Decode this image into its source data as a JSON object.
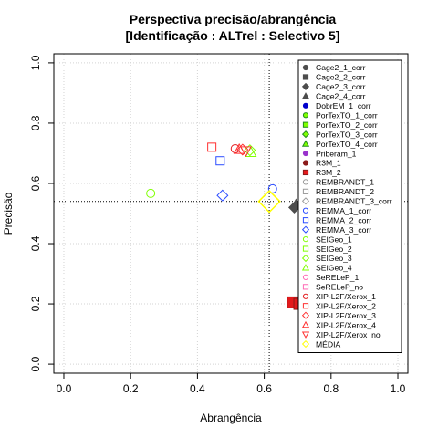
{
  "chart_data": {
    "type": "scatter",
    "title": "Perspectiva precisão/abrangência",
    "subtitle": "[Identificação : ALTrel : Selectivo 5]",
    "xlabel": "Abrangência",
    "ylabel": "Precisão",
    "xlim": [
      -0.03,
      1.03
    ],
    "ylim": [
      -0.03,
      1.03
    ],
    "xticks": [
      "0.0",
      "0.2",
      "0.4",
      "0.6",
      "0.8",
      "1.0"
    ],
    "yticks": [
      "0.0",
      "0.2",
      "0.4",
      "0.6",
      "0.8",
      "1.0"
    ],
    "grid": true,
    "legend_position": "right",
    "reference_lines": {
      "x": 0.615,
      "y": 0.54
    },
    "series": [
      {
        "name": "Cage2_1_corr",
        "shape": "circle",
        "color": "#4d4d4d",
        "fill": "#4d4d4d",
        "points": []
      },
      {
        "name": "Cage2_2_corr",
        "shape": "square",
        "color": "#4d4d4d",
        "fill": "#4d4d4d",
        "points": []
      },
      {
        "name": "Cage2_3_corr",
        "shape": "diamond",
        "color": "#4d4d4d",
        "fill": "#4d4d4d",
        "points": [
          [
            0.69,
            0.52
          ]
        ]
      },
      {
        "name": "Cage2_4_corr",
        "shape": "triangle",
        "color": "#4d4d4d",
        "fill": "#4d4d4d",
        "points": [
          [
            0.695,
            0.53
          ]
        ]
      },
      {
        "name": "DobrEM_1_corr",
        "shape": "circle",
        "color": "#0000cc",
        "fill": "#0000cc",
        "points": []
      },
      {
        "name": "PorTexTO_1_corr",
        "shape": "circle",
        "color": "#228b22",
        "fill": "#7fff00",
        "points": []
      },
      {
        "name": "PorTexTO_2_corr",
        "shape": "square",
        "color": "#228b22",
        "fill": "#7fff00",
        "points": []
      },
      {
        "name": "PorTexTO_3_corr",
        "shape": "diamond",
        "color": "#228b22",
        "fill": "#7fff00",
        "points": []
      },
      {
        "name": "PorTexTO_4_corr",
        "shape": "triangle",
        "color": "#228b22",
        "fill": "#7fff00",
        "points": []
      },
      {
        "name": "Priberam_1",
        "shape": "circle",
        "color": "#9932cc",
        "fill": "#9932cc",
        "points": []
      },
      {
        "name": "R3M_1",
        "shape": "circle",
        "color": "#8b1a1a",
        "fill": "#8b1a1a",
        "points": []
      },
      {
        "name": "R3M_2",
        "shape": "square",
        "color": "#8b1a1a",
        "fill": "#e31a1c",
        "points": [
          [
            0.685,
            0.205
          ],
          [
            0.705,
            0.2
          ]
        ]
      },
      {
        "name": "REMBRANDT_1",
        "shape": "circle",
        "color": "#999999",
        "fill": "none",
        "points": []
      },
      {
        "name": "REMBRANDT_2",
        "shape": "square",
        "color": "#999999",
        "fill": "none",
        "points": []
      },
      {
        "name": "REMBRANDT_3_corr",
        "shape": "diamond",
        "color": "#999999",
        "fill": "none",
        "points": []
      },
      {
        "name": "REMMA_1_corr",
        "shape": "circle",
        "color": "#2b4cff",
        "fill": "none",
        "points": [
          [
            0.625,
            0.582
          ]
        ]
      },
      {
        "name": "REMMA_2_corr",
        "shape": "square",
        "color": "#2b4cff",
        "fill": "none",
        "points": [
          [
            0.468,
            0.675
          ]
        ]
      },
      {
        "name": "REMMA_3_corr",
        "shape": "diamond",
        "color": "#2b4cff",
        "fill": "none",
        "points": [
          [
            0.475,
            0.56
          ]
        ]
      },
      {
        "name": "SEIGeo_1",
        "shape": "circle",
        "color": "#7fff00",
        "fill": "none",
        "points": [
          [
            0.26,
            0.567
          ]
        ]
      },
      {
        "name": "SEIGeo_2",
        "shape": "square",
        "color": "#7fff00",
        "fill": "none",
        "points": []
      },
      {
        "name": "SEIGeo_3",
        "shape": "diamond",
        "color": "#7fff00",
        "fill": "none",
        "points": [
          [
            0.557,
            0.71
          ]
        ]
      },
      {
        "name": "SEIGeo_4",
        "shape": "triangle",
        "color": "#7fff00",
        "fill": "none",
        "points": [
          [
            0.56,
            0.703
          ]
        ]
      },
      {
        "name": "SeRELeP_1",
        "shape": "circle",
        "color": "#ff69b4",
        "fill": "none",
        "points": []
      },
      {
        "name": "SeRELeP_no",
        "shape": "square",
        "color": "#ff69b4",
        "fill": "none",
        "points": []
      },
      {
        "name": "XIP-L2F/Xerox_1",
        "shape": "circle",
        "color": "#e31a1c",
        "fill": "none",
        "points": [
          [
            0.513,
            0.715
          ]
        ]
      },
      {
        "name": "XIP-L2F/Xerox_2",
        "shape": "square",
        "color": "#ff3030",
        "fill": "none",
        "points": [
          [
            0.443,
            0.72
          ]
        ]
      },
      {
        "name": "XIP-L2F/Xerox_3",
        "shape": "diamond",
        "color": "#ff3030",
        "fill": "none",
        "points": [
          [
            0.535,
            0.712
          ]
        ]
      },
      {
        "name": "XIP-L2F/Xerox_4",
        "shape": "triangle",
        "color": "#ff3030",
        "fill": "none",
        "points": [
          [
            0.525,
            0.713
          ]
        ]
      },
      {
        "name": "XIP-L2F/Xerox_no",
        "shape": "triangle-down",
        "color": "#ff3030",
        "fill": "none",
        "points": [
          [
            0.545,
            0.708
          ]
        ]
      },
      {
        "name": "MÉDIA",
        "shape": "diamond",
        "color": "#ffff00",
        "fill": "none",
        "points": [
          [
            0.615,
            0.54
          ]
        ]
      }
    ]
  }
}
